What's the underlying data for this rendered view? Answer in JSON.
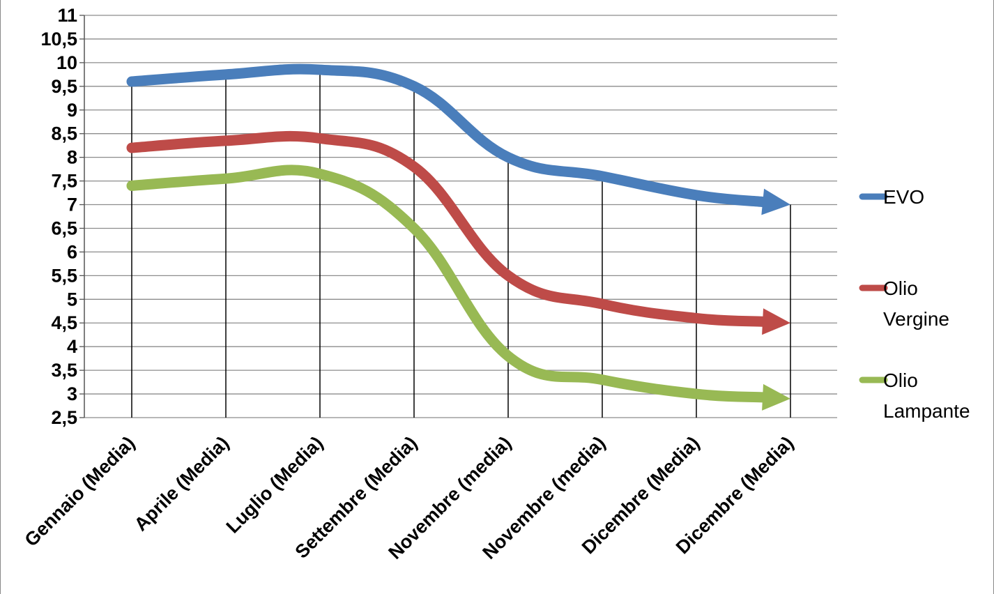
{
  "chart_data": {
    "type": "line",
    "title": "",
    "xlabel": "",
    "ylabel": "",
    "categories": [
      "Gennaio (Media)",
      "Aprile (Media)",
      "Luglio (Media)",
      "Settembre (Media)",
      "Novembre (media)",
      "Novembre (media)",
      "Dicembre (Media)",
      "Dicembre (Media)"
    ],
    "y_ticks": [
      "2,5",
      "3",
      "3,5",
      "4",
      "4,5",
      "5",
      "5,5",
      "6",
      "6,5",
      "7",
      "7,5",
      "8",
      "8,5",
      "9",
      "9,5",
      "10",
      "10,5",
      "11"
    ],
    "ylim": [
      2.5,
      11
    ],
    "grid": true,
    "legend_position": "right",
    "series": [
      {
        "name": "EVO",
        "color": "#4a7ebb",
        "values": [
          9.6,
          9.75,
          9.85,
          9.5,
          8.0,
          7.6,
          7.2,
          7.0
        ]
      },
      {
        "name": "Olio Vergine",
        "color": "#be4b48",
        "values": [
          8.2,
          8.35,
          8.4,
          7.8,
          5.5,
          4.9,
          4.6,
          4.5
        ]
      },
      {
        "name": "Olio Lampante",
        "color": "#98b954",
        "values": [
          7.4,
          7.55,
          7.65,
          6.5,
          3.8,
          3.3,
          3.0,
          2.9
        ]
      }
    ]
  },
  "legend": {
    "items": [
      {
        "lines": [
          "EVO"
        ],
        "color": "#4a7ebb"
      },
      {
        "lines": [
          "Olio",
          "Vergine"
        ],
        "color": "#be4b48"
      },
      {
        "lines": [
          "Olio",
          "Lampante"
        ],
        "color": "#98b954"
      }
    ]
  }
}
